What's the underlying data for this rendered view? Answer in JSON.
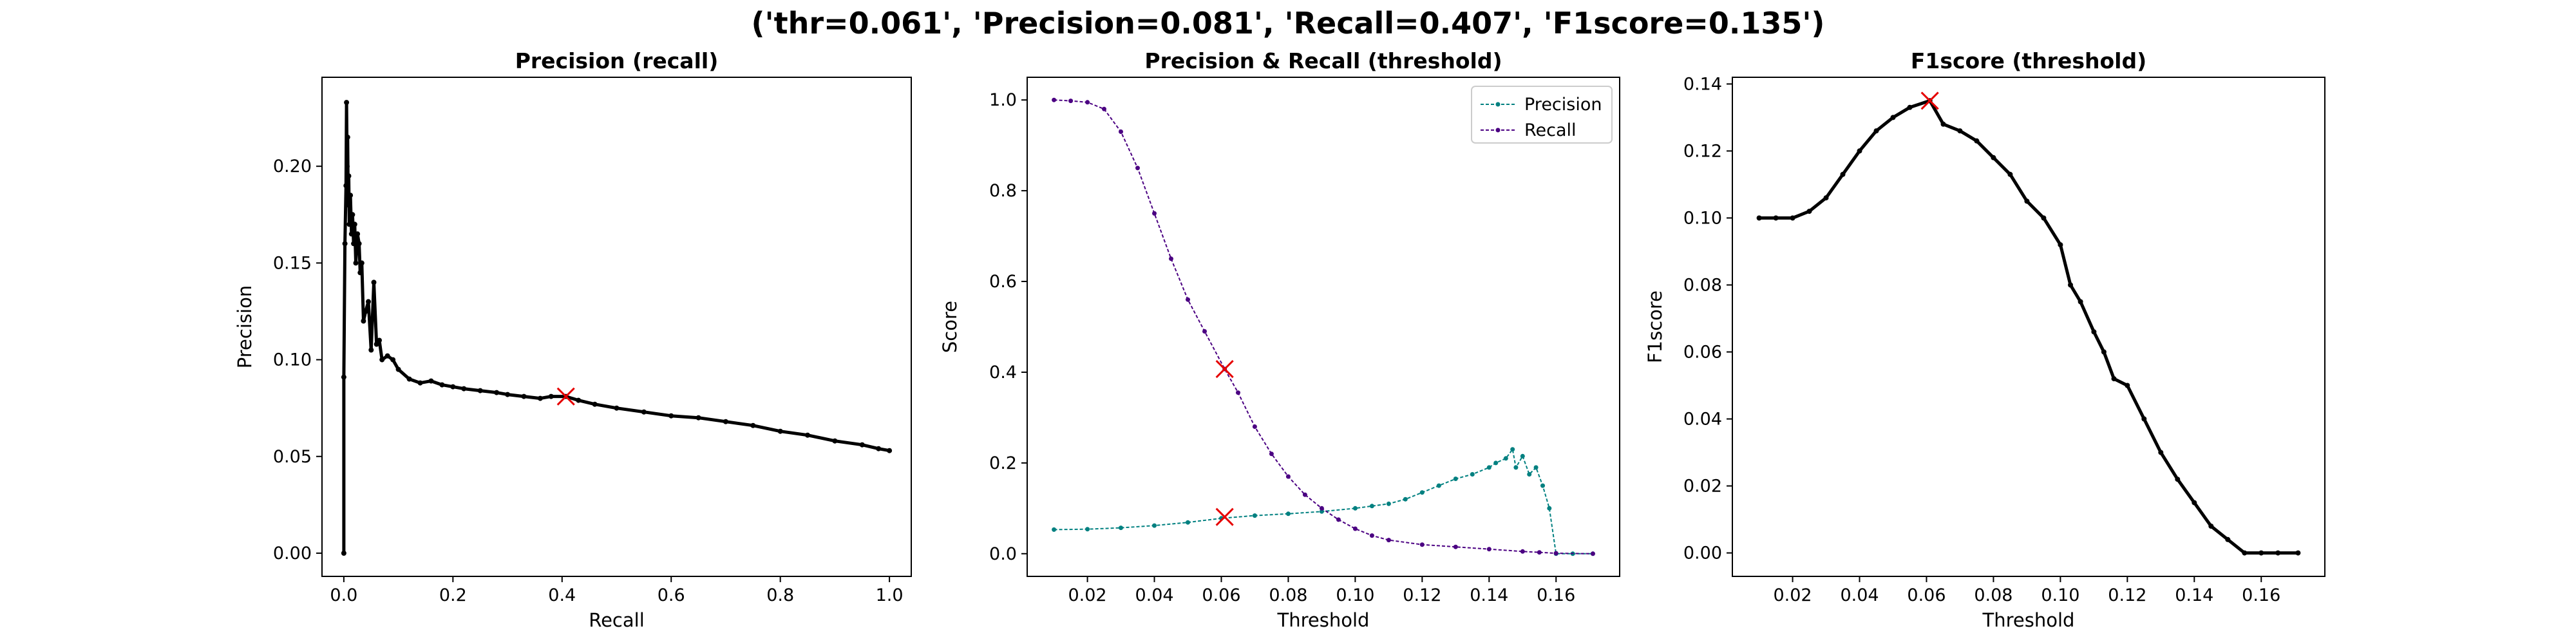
{
  "figure": {
    "suptitle": "('thr=0.061', 'Precision=0.081', 'Recall=0.407', 'F1score=0.135')"
  },
  "colors": {
    "precision": "#008080",
    "recall": "#4b0082",
    "pr_curve": "#000000",
    "f1": "#000000",
    "marker": "#e60000"
  },
  "chart_data": [
    {
      "type": "line",
      "title": "Precision (recall)",
      "xlabel": "Recall",
      "ylabel": "Precision",
      "xlim": [
        -0.04,
        1.04
      ],
      "ylim": [
        -0.012,
        0.246
      ],
      "xticks": [
        "0.0",
        "0.2",
        "0.4",
        "0.6",
        "0.8",
        "1.0"
      ],
      "yticks": [
        "0.00",
        "0.05",
        "0.10",
        "0.15",
        "0.20"
      ],
      "grid": false,
      "series": [
        {
          "x": [
            0.0,
            0.0,
            0.002,
            0.004,
            0.005,
            0.006,
            0.007,
            0.008,
            0.009,
            0.01,
            0.012,
            0.014,
            0.016,
            0.018,
            0.02,
            0.022,
            0.025,
            0.028,
            0.03,
            0.033,
            0.036,
            0.04,
            0.045,
            0.05,
            0.055,
            0.06,
            0.065,
            0.07,
            0.08,
            0.09,
            0.1,
            0.12,
            0.14,
            0.16,
            0.18,
            0.2,
            0.22,
            0.25,
            0.28,
            0.3,
            0.33,
            0.36,
            0.38,
            0.407,
            0.43,
            0.46,
            0.5,
            0.55,
            0.6,
            0.65,
            0.7,
            0.75,
            0.8,
            0.85,
            0.9,
            0.95,
            0.98,
            1.0
          ],
          "y": [
            0.0,
            0.091,
            0.16,
            0.19,
            0.233,
            0.2,
            0.215,
            0.18,
            0.195,
            0.17,
            0.185,
            0.165,
            0.175,
            0.16,
            0.17,
            0.15,
            0.165,
            0.16,
            0.145,
            0.15,
            0.12,
            0.125,
            0.13,
            0.105,
            0.14,
            0.108,
            0.11,
            0.1,
            0.102,
            0.1,
            0.095,
            0.09,
            0.088,
            0.089,
            0.087,
            0.086,
            0.085,
            0.084,
            0.083,
            0.082,
            0.081,
            0.08,
            0.081,
            0.081,
            0.079,
            0.077,
            0.075,
            0.073,
            0.071,
            0.07,
            0.068,
            0.066,
            0.063,
            0.061,
            0.058,
            0.056,
            0.054,
            0.053
          ]
        }
      ],
      "marker": {
        "x": 0.407,
        "y": 0.081
      }
    },
    {
      "type": "line",
      "title": "Precision & Recall (threshold)",
      "xlabel": "Threshold",
      "ylabel": "Score",
      "xlim": [
        0.002,
        0.179
      ],
      "ylim": [
        -0.05,
        1.05
      ],
      "xticks": [
        "0.02",
        "0.04",
        "0.06",
        "0.08",
        "0.10",
        "0.12",
        "0.14",
        "0.16"
      ],
      "yticks": [
        "0.0",
        "0.2",
        "0.4",
        "0.6",
        "0.8",
        "1.0"
      ],
      "grid": false,
      "legend": "upper-right",
      "series": [
        {
          "name": "Precision",
          "x": [
            0.01,
            0.02,
            0.03,
            0.04,
            0.05,
            0.06,
            0.07,
            0.08,
            0.09,
            0.1,
            0.105,
            0.11,
            0.115,
            0.12,
            0.125,
            0.13,
            0.135,
            0.14,
            0.142,
            0.145,
            0.147,
            0.148,
            0.15,
            0.152,
            0.154,
            0.156,
            0.158,
            0.16,
            0.165,
            0.171
          ],
          "y": [
            0.053,
            0.054,
            0.057,
            0.062,
            0.069,
            0.078,
            0.084,
            0.088,
            0.093,
            0.1,
            0.105,
            0.11,
            0.12,
            0.135,
            0.15,
            0.165,
            0.175,
            0.19,
            0.2,
            0.21,
            0.23,
            0.19,
            0.215,
            0.175,
            0.19,
            0.15,
            0.1,
            0.0,
            0.0,
            0.0
          ]
        },
        {
          "name": "Recall",
          "x": [
            0.01,
            0.015,
            0.02,
            0.025,
            0.03,
            0.035,
            0.04,
            0.045,
            0.05,
            0.055,
            0.061,
            0.065,
            0.07,
            0.075,
            0.08,
            0.085,
            0.09,
            0.095,
            0.1,
            0.105,
            0.11,
            0.12,
            0.13,
            0.14,
            0.15,
            0.155,
            0.16,
            0.171
          ],
          "y": [
            1.0,
            0.998,
            0.995,
            0.98,
            0.93,
            0.85,
            0.75,
            0.65,
            0.56,
            0.49,
            0.407,
            0.355,
            0.28,
            0.22,
            0.17,
            0.13,
            0.1,
            0.075,
            0.055,
            0.04,
            0.03,
            0.02,
            0.015,
            0.01,
            0.005,
            0.003,
            0.001,
            0.0
          ]
        }
      ],
      "markers": [
        {
          "x": 0.061,
          "y": 0.407
        },
        {
          "x": 0.061,
          "y": 0.081
        }
      ]
    },
    {
      "type": "line",
      "title": "F1score (threshold)",
      "xlabel": "Threshold",
      "ylabel": "F1score",
      "xlim": [
        0.002,
        0.179
      ],
      "ylim": [
        -0.007,
        0.142
      ],
      "xticks": [
        "0.02",
        "0.04",
        "0.06",
        "0.08",
        "0.10",
        "0.12",
        "0.14",
        "0.16"
      ],
      "yticks": [
        "0.00",
        "0.02",
        "0.04",
        "0.06",
        "0.08",
        "0.10",
        "0.12",
        "0.14"
      ],
      "grid": false,
      "series": [
        {
          "x": [
            0.01,
            0.015,
            0.02,
            0.025,
            0.03,
            0.035,
            0.04,
            0.045,
            0.05,
            0.055,
            0.061,
            0.065,
            0.07,
            0.075,
            0.08,
            0.085,
            0.09,
            0.095,
            0.1,
            0.103,
            0.106,
            0.11,
            0.113,
            0.116,
            0.12,
            0.125,
            0.13,
            0.135,
            0.14,
            0.145,
            0.15,
            0.155,
            0.16,
            0.165,
            0.171
          ],
          "y": [
            0.1,
            0.1,
            0.1,
            0.102,
            0.106,
            0.113,
            0.12,
            0.126,
            0.13,
            0.133,
            0.135,
            0.128,
            0.126,
            0.123,
            0.118,
            0.113,
            0.105,
            0.1,
            0.092,
            0.08,
            0.075,
            0.066,
            0.06,
            0.052,
            0.05,
            0.04,
            0.03,
            0.022,
            0.015,
            0.008,
            0.004,
            0.0,
            0.0,
            0.0,
            0.0
          ]
        }
      ],
      "marker": {
        "x": 0.061,
        "y": 0.135
      }
    }
  ]
}
